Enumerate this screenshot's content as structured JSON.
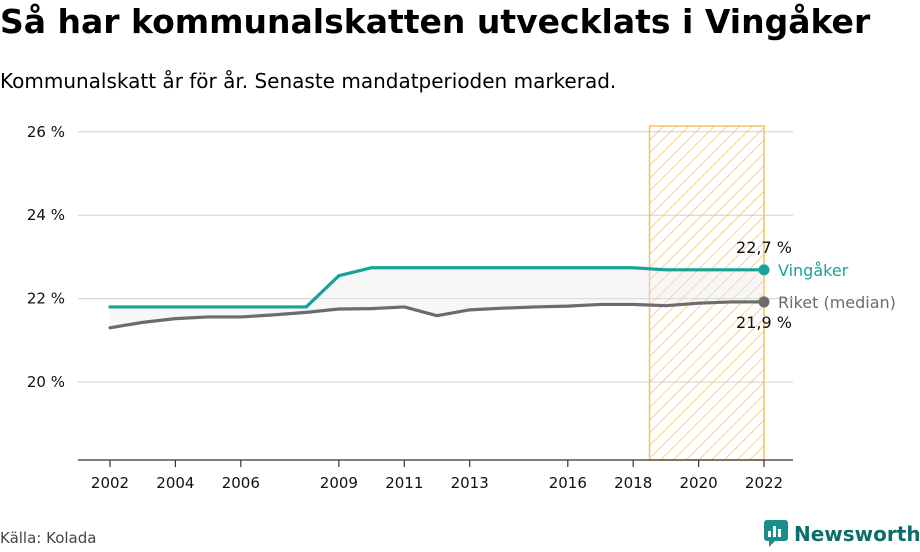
{
  "header": {
    "title": "Så har kommunalskatten utvecklats i Vingåker",
    "subtitle": "Kommunalskatt år för år. Senaste mandatperioden markerad."
  },
  "footer": {
    "source": "Källa: Kolada",
    "brand": "Newsworthy",
    "brand_icon": "newsworthy-logo-icon"
  },
  "colors": {
    "vingaker": "#17a398",
    "riket": "#6b6b70",
    "highlight_fill": "#ffd98a",
    "highlight_stroke": "#f5c060",
    "gridline": "#d0d0d0",
    "brand": "#1a8f8a"
  },
  "chart_data": {
    "type": "line",
    "x_ticks": [
      "2002",
      "2004",
      "2006",
      "2009",
      "2011",
      "2013",
      "2016",
      "2018",
      "2020",
      "2022"
    ],
    "y_ticks": [
      "20 %",
      "22 %",
      "24 %",
      "26 %"
    ],
    "ylim": [
      18,
      26
    ],
    "xlim": [
      2001,
      2023
    ],
    "grid": true,
    "highlight_period": [
      2018.5,
      2022
    ],
    "series": [
      {
        "name": "Vingåker",
        "end_label": "22,7 %",
        "x": [
          2002,
          2003,
          2004,
          2005,
          2006,
          2007,
          2008,
          2009,
          2010,
          2011,
          2012,
          2013,
          2014,
          2015,
          2016,
          2017,
          2018,
          2019,
          2020,
          2021,
          2022
        ],
        "values": [
          21.8,
          21.8,
          21.8,
          21.8,
          21.8,
          21.8,
          21.8,
          22.55,
          22.74,
          22.74,
          22.74,
          22.74,
          22.74,
          22.74,
          22.74,
          22.74,
          22.74,
          22.69,
          22.69,
          22.69,
          22.69
        ]
      },
      {
        "name": "Riket (median)",
        "end_label": "21,9 %",
        "x": [
          2002,
          2003,
          2004,
          2005,
          2006,
          2007,
          2008,
          2009,
          2010,
          2011,
          2012,
          2013,
          2014,
          2015,
          2016,
          2017,
          2018,
          2019,
          2020,
          2021,
          2022
        ],
        "values": [
          21.3,
          21.43,
          21.52,
          21.56,
          21.56,
          21.61,
          21.67,
          21.75,
          21.76,
          21.8,
          21.59,
          21.73,
          21.77,
          21.8,
          21.82,
          21.86,
          21.86,
          21.83,
          21.89,
          21.92,
          21.92
        ]
      }
    ]
  }
}
